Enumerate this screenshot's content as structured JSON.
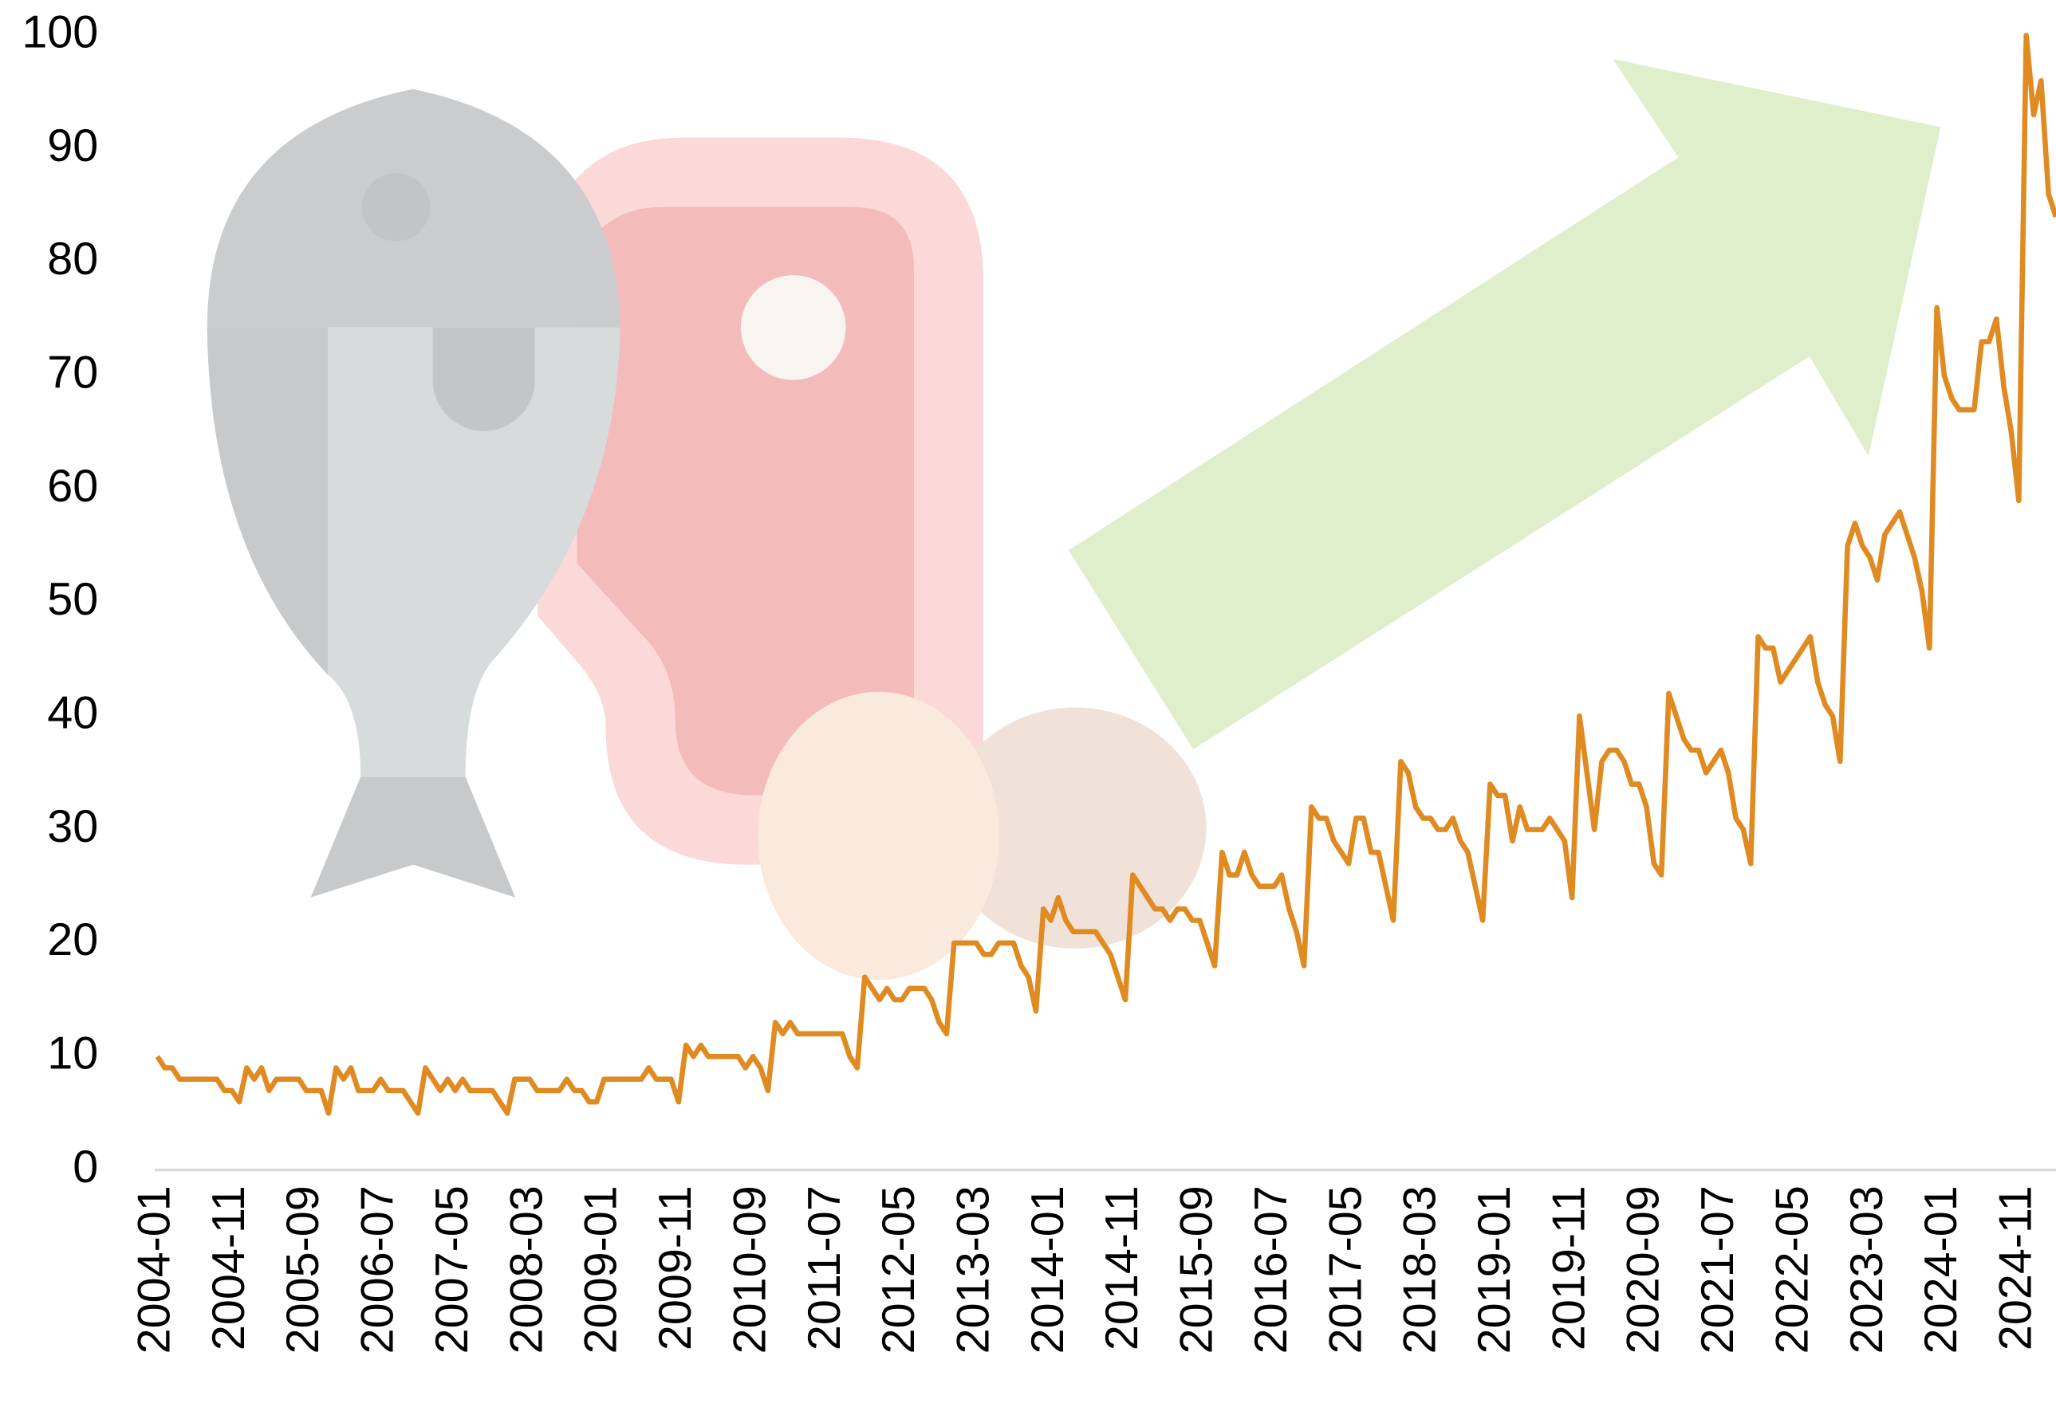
{
  "chart_data": {
    "type": "line",
    "x": [
      "2004-01",
      "2004-02",
      "2004-03",
      "2004-04",
      "2004-05",
      "2004-06",
      "2004-07",
      "2004-08",
      "2004-09",
      "2004-10",
      "2004-11",
      "2004-12",
      "2005-01",
      "2005-02",
      "2005-03",
      "2005-04",
      "2005-05",
      "2005-06",
      "2005-07",
      "2005-08",
      "2005-09",
      "2005-10",
      "2005-11",
      "2005-12",
      "2006-01",
      "2006-02",
      "2006-03",
      "2006-04",
      "2006-05",
      "2006-06",
      "2006-07",
      "2006-08",
      "2006-09",
      "2006-10",
      "2006-11",
      "2006-12",
      "2007-01",
      "2007-02",
      "2007-03",
      "2007-04",
      "2007-05",
      "2007-06",
      "2007-07",
      "2007-08",
      "2007-09",
      "2007-10",
      "2007-11",
      "2007-12",
      "2008-01",
      "2008-02",
      "2008-03",
      "2008-04",
      "2008-05",
      "2008-06",
      "2008-07",
      "2008-08",
      "2008-09",
      "2008-10",
      "2008-11",
      "2008-12",
      "2009-01",
      "2009-02",
      "2009-03",
      "2009-04",
      "2009-05",
      "2009-06",
      "2009-07",
      "2009-08",
      "2009-09",
      "2009-10",
      "2009-11",
      "2009-12",
      "2010-01",
      "2010-02",
      "2010-03",
      "2010-04",
      "2010-05",
      "2010-06",
      "2010-07",
      "2010-08",
      "2010-09",
      "2010-10",
      "2010-11",
      "2010-12",
      "2011-01",
      "2011-02",
      "2011-03",
      "2011-04",
      "2011-05",
      "2011-06",
      "2011-07",
      "2011-08",
      "2011-09",
      "2011-10",
      "2011-11",
      "2011-12",
      "2012-01",
      "2012-02",
      "2012-03",
      "2012-04",
      "2012-05",
      "2012-06",
      "2012-07",
      "2012-08",
      "2012-09",
      "2012-10",
      "2012-11",
      "2012-12",
      "2013-01",
      "2013-02",
      "2013-03",
      "2013-04",
      "2013-05",
      "2013-06",
      "2013-07",
      "2013-08",
      "2013-09",
      "2013-10",
      "2013-11",
      "2013-12",
      "2014-01",
      "2014-02",
      "2014-03",
      "2014-04",
      "2014-05",
      "2014-06",
      "2014-07",
      "2014-08",
      "2014-09",
      "2014-10",
      "2014-11",
      "2014-12",
      "2015-01",
      "2015-02",
      "2015-03",
      "2015-04",
      "2015-05",
      "2015-06",
      "2015-07",
      "2015-08",
      "2015-09",
      "2015-10",
      "2015-11",
      "2015-12",
      "2016-01",
      "2016-02",
      "2016-03",
      "2016-04",
      "2016-05",
      "2016-06",
      "2016-07",
      "2016-08",
      "2016-09",
      "2016-10",
      "2016-11",
      "2016-12",
      "2017-01",
      "2017-02",
      "2017-03",
      "2017-04",
      "2017-05",
      "2017-06",
      "2017-07",
      "2017-08",
      "2017-09",
      "2017-10",
      "2017-11",
      "2017-12",
      "2018-01",
      "2018-02",
      "2018-03",
      "2018-04",
      "2018-05",
      "2018-06",
      "2018-07",
      "2018-08",
      "2018-09",
      "2018-10",
      "2018-11",
      "2018-12",
      "2019-01",
      "2019-02",
      "2019-03",
      "2019-04",
      "2019-05",
      "2019-06",
      "2019-07",
      "2019-08",
      "2019-09",
      "2019-10",
      "2019-11",
      "2019-12",
      "2020-01",
      "2020-02",
      "2020-03",
      "2020-04",
      "2020-05",
      "2020-06",
      "2020-07",
      "2020-08",
      "2020-09",
      "2020-10",
      "2020-11",
      "2020-12",
      "2021-01",
      "2021-02",
      "2021-03",
      "2021-04",
      "2021-05",
      "2021-06",
      "2021-07",
      "2021-08",
      "2021-09",
      "2021-10",
      "2021-11",
      "2021-12",
      "2022-01",
      "2022-02",
      "2022-03",
      "2022-04",
      "2022-05",
      "2022-06",
      "2022-07",
      "2022-08",
      "2022-09",
      "2022-10",
      "2022-11",
      "2022-12",
      "2023-01",
      "2023-02",
      "2023-03",
      "2023-04",
      "2023-05",
      "2023-06",
      "2023-07",
      "2023-08",
      "2023-09",
      "2023-10",
      "2023-11",
      "2023-12",
      "2024-01",
      "2024-02",
      "2024-03",
      "2024-04",
      "2024-05",
      "2024-06",
      "2024-07",
      "2024-08",
      "2024-09",
      "2024-10",
      "2024-11",
      "2024-12",
      "2025-01",
      "2025-02",
      "2025-03",
      "2025-04"
    ],
    "series": [
      {
        "color": "#e08a22",
        "values": [
          10,
          9,
          9,
          8,
          8,
          8,
          8,
          8,
          8,
          7,
          7,
          6,
          9,
          8,
          9,
          7,
          8,
          8,
          8,
          8,
          7,
          7,
          7,
          5,
          9,
          8,
          9,
          7,
          7,
          7,
          8,
          7,
          7,
          7,
          6,
          5,
          9,
          8,
          7,
          8,
          7,
          8,
          7,
          7,
          7,
          7,
          6,
          5,
          8,
          8,
          8,
          7,
          7,
          7,
          7,
          8,
          7,
          7,
          6,
          6,
          8,
          8,
          8,
          8,
          8,
          8,
          9,
          8,
          8,
          8,
          6,
          11,
          10,
          11,
          10,
          10,
          10,
          10,
          10,
          9,
          10,
          9,
          7,
          13,
          12,
          13,
          12,
          12,
          12,
          12,
          12,
          12,
          12,
          10,
          9,
          17,
          16,
          15,
          16,
          15,
          15,
          16,
          16,
          16,
          15,
          13,
          12,
          20,
          20,
          20,
          20,
          19,
          19,
          20,
          20,
          20,
          18,
          17,
          14,
          23,
          22,
          24,
          22,
          21,
          21,
          21,
          21,
          20,
          19,
          17,
          15,
          26,
          25,
          24,
          23,
          23,
          22,
          23,
          23,
          22,
          22,
          20,
          18,
          28,
          26,
          26,
          28,
          26,
          25,
          25,
          25,
          26,
          23,
          21,
          18,
          32,
          31,
          31,
          29,
          28,
          27,
          31,
          31,
          28,
          28,
          25,
          22,
          36,
          35,
          32,
          31,
          31,
          30,
          30,
          31,
          29,
          28,
          25,
          22,
          34,
          33,
          33,
          29,
          32,
          30,
          30,
          30,
          31,
          30,
          29,
          24,
          40,
          35,
          30,
          36,
          37,
          37,
          36,
          34,
          34,
          32,
          27,
          26,
          42,
          40,
          38,
          37,
          37,
          35,
          36,
          37,
          35,
          31,
          30,
          27,
          47,
          46,
          46,
          43,
          44,
          45,
          46,
          47,
          43,
          41,
          40,
          36,
          55,
          57,
          55,
          54,
          52,
          56,
          57,
          58,
          56,
          54,
          51,
          46,
          76,
          70,
          68,
          67,
          67,
          67,
          73,
          73,
          75,
          69,
          65,
          59,
          100,
          93,
          96,
          86,
          84
        ]
      }
    ],
    "xticks": [
      "2004-01",
      "2004-11",
      "2005-09",
      "2006-07",
      "2007-05",
      "2008-03",
      "2009-01",
      "2009-11",
      "2010-09",
      "2011-07",
      "2012-05",
      "2013-03",
      "2014-01",
      "2014-11",
      "2015-09",
      "2016-07",
      "2017-05",
      "2018-03",
      "2019-01",
      "2019-11",
      "2020-09",
      "2021-07",
      "2022-05",
      "2023-03",
      "2024-01",
      "2024-11"
    ],
    "ylim": [
      0,
      100
    ],
    "yticks": [
      0,
      10,
      20,
      30,
      40,
      50,
      60,
      70,
      80,
      90,
      100
    ]
  }
}
